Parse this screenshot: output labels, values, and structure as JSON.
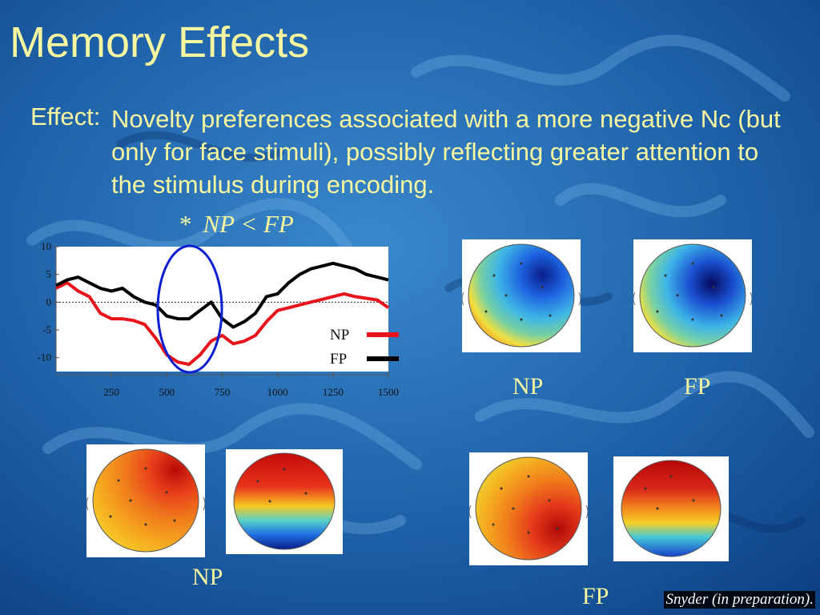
{
  "slide": {
    "title": "Memory Effects",
    "effect_label": "Effect:",
    "effect_text": "Novelty preferences associated with a more negative Nc (but only for face stimuli), possibly reflecting greater attention to the stimulus during encoding.",
    "significance_star": "*",
    "significance_text": "NP < FP",
    "top_maps": {
      "left_caption": "NP",
      "right_caption": "FP"
    },
    "bottom_left_caption": "NP",
    "bottom_right_caption": "FP",
    "credit": "Snyder (in preparation)."
  },
  "colors": {
    "title_text": "#f7f7a0",
    "background": "#1e5a9c",
    "np_series": "#e8141c",
    "fp_series": "#000000",
    "highlight_ellipse": "#0a1fd0"
  },
  "chart_data": {
    "type": "line",
    "x_ticks": [
      250,
      500,
      750,
      1000,
      1250,
      1500
    ],
    "y_ticks": [
      10,
      5,
      0,
      -5,
      -10
    ],
    "xlim": [
      0,
      1500
    ],
    "ylim": [
      -12.5,
      10
    ],
    "zero_line": "dotted",
    "legend_position": "right",
    "series": [
      {
        "name": "NP",
        "color": "#e8141c",
        "x": [
          0,
          50,
          100,
          150,
          200,
          250,
          300,
          350,
          400,
          450,
          500,
          550,
          600,
          650,
          700,
          750,
          800,
          850,
          900,
          950,
          1000,
          1050,
          1100,
          1150,
          1200,
          1250,
          1300,
          1350,
          1400,
          1450,
          1500
        ],
        "y": [
          2.5,
          3.5,
          2,
          1,
          -2,
          -3,
          -3,
          -3.3,
          -4,
          -6.5,
          -9.5,
          -10.8,
          -11.2,
          -9.5,
          -7,
          -6,
          -7.5,
          -7,
          -6,
          -3.5,
          -1.5,
          -1,
          -0.5,
          0,
          0.5,
          1,
          1.5,
          1,
          0.7,
          0.4,
          -1
        ]
      },
      {
        "name": "FP",
        "color": "#000000",
        "x": [
          0,
          50,
          100,
          150,
          200,
          250,
          300,
          350,
          400,
          450,
          500,
          550,
          600,
          650,
          700,
          750,
          800,
          850,
          900,
          950,
          1000,
          1050,
          1100,
          1150,
          1200,
          1250,
          1300,
          1350,
          1400,
          1450,
          1500
        ],
        "y": [
          3,
          4,
          4.5,
          3.5,
          2.5,
          2,
          2.5,
          1,
          0,
          -0.5,
          -2.5,
          -3,
          -3,
          -1.5,
          0,
          -3,
          -4.5,
          -3.5,
          -2,
          1,
          1.5,
          3.5,
          5,
          6,
          6.5,
          7,
          6.5,
          6,
          5,
          4.5,
          4
        ]
      }
    ]
  }
}
